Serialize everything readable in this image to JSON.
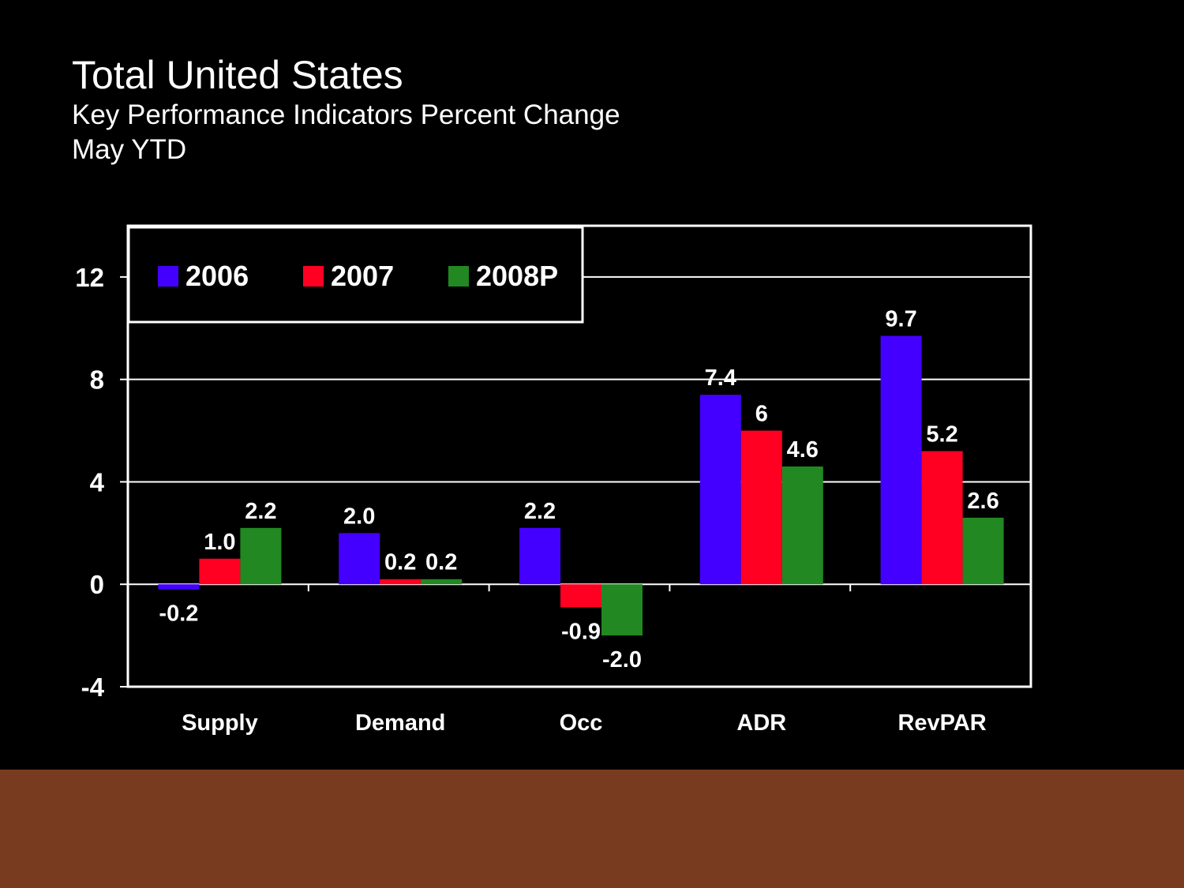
{
  "slide": {
    "title": "Total United States",
    "subtitle": "Key Performance Indicators Percent Change",
    "period": "May YTD",
    "footer_color": "#783b20",
    "background_color": "#000000"
  },
  "chart_data": {
    "type": "bar",
    "categories": [
      "Supply",
      "Demand",
      "Occ",
      "ADR",
      "RevPAR"
    ],
    "series": [
      {
        "name": "2006",
        "color": "#4400ff",
        "values": [
          -0.2,
          2.0,
          2.2,
          7.4,
          9.7
        ],
        "labels": [
          "-0.2",
          "2.0",
          "2.2",
          "7.4",
          "9.7"
        ]
      },
      {
        "name": "2007",
        "color": "#ff0022",
        "values": [
          1.0,
          0.2,
          -0.9,
          6,
          5.2
        ],
        "labels": [
          "1.0",
          "0.2",
          "-0.9",
          "6",
          "5.2"
        ]
      },
      {
        "name": "2008P",
        "color": "#228822",
        "values": [
          2.2,
          0.2,
          -2.0,
          4.6,
          2.6
        ],
        "labels": [
          "2.2",
          "0.2",
          "-2.0",
          "4.6",
          "2.6"
        ]
      }
    ],
    "yticks": [
      12,
      8,
      4,
      0,
      -4
    ],
    "ylim": [
      -4,
      14
    ],
    "grid": true,
    "legend": "top-left"
  }
}
